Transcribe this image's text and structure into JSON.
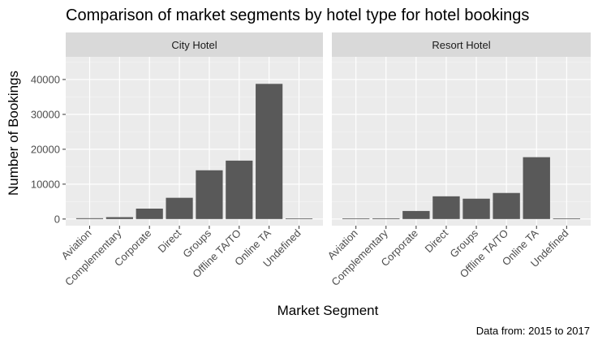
{
  "chart_data": {
    "type": "bar",
    "title": "Comparison of market segments by hotel type for hotel bookings",
    "xlabel": "Market Segment",
    "ylabel": "Number of Bookings",
    "caption": "Data from: 2015 to 2017",
    "categories": [
      "Aviation",
      "Complementary",
      "Corporate",
      "Direct",
      "Groups",
      "Offline TA/TO",
      "Online TA",
      "Undefined"
    ],
    "ylim": [
      -1900,
      46500
    ],
    "yticks": [
      0,
      10000,
      20000,
      30000,
      40000
    ],
    "ytick_labels": [
      "0",
      "10000",
      "20000",
      "30000",
      "40000"
    ],
    "grid": true,
    "bar_color": "#595959",
    "panel_background": "#ebebeb",
    "strip_background": "#d9d9d9",
    "facets": [
      {
        "name": "City Hotel",
        "values": [
          237,
          542,
          2986,
          6093,
          13975,
          16747,
          38748,
          2
        ]
      },
      {
        "name": "Resort Hotel",
        "values": [
          0,
          201,
          2309,
          6513,
          5836,
          7472,
          17729,
          0
        ]
      }
    ]
  }
}
